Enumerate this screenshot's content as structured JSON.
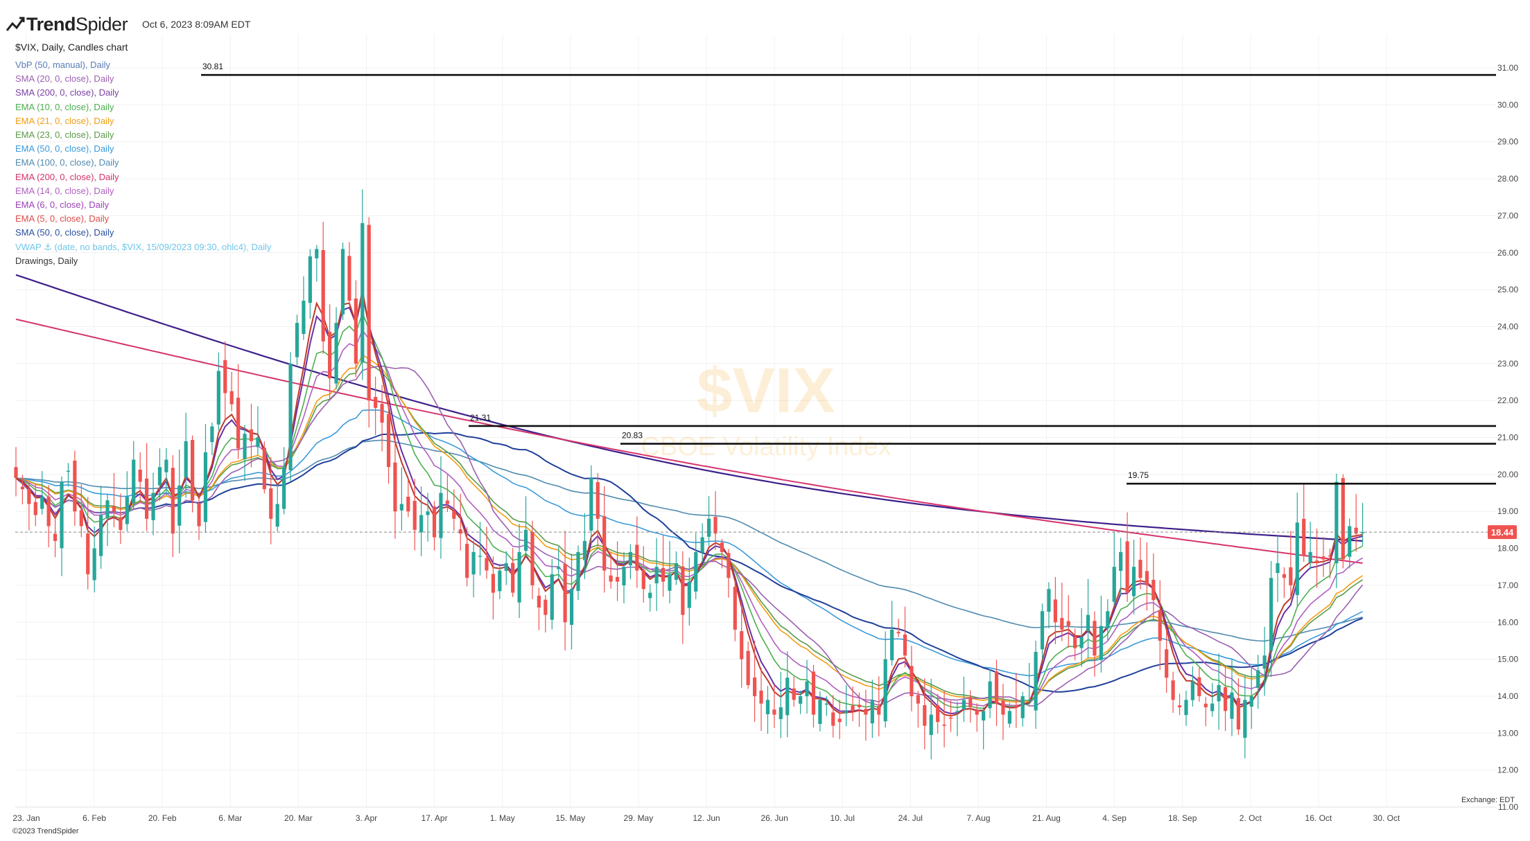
{
  "header": {
    "brand_a": "Trend",
    "brand_b": "Spider",
    "timestamp": "Oct 6, 2023 8:09AM EDT",
    "chart_name": "$VIX, Daily, Candles chart"
  },
  "legend": [
    {
      "label": "VbP (50, manual), Daily",
      "color": "#5b7db8"
    },
    {
      "label": "SMA (20, 0, close), Daily",
      "color": "#9c5fb0"
    },
    {
      "label": "SMA (200, 0, close), Daily",
      "color": "#7b3fa6"
    },
    {
      "label": "EMA (10, 0, close), Daily",
      "color": "#4caf50"
    },
    {
      "label": "EMA (21, 0, close), Daily",
      "color": "#f39c12"
    },
    {
      "label": "EMA (23, 0, close), Daily",
      "color": "#5a9a4a"
    },
    {
      "label": "EMA (50, 0, close), Daily",
      "color": "#3a9ad9"
    },
    {
      "label": "EMA (100, 0, close), Daily",
      "color": "#4f8ab0"
    },
    {
      "label": "EMA (200, 0, close), Daily",
      "color": "#d6336c"
    },
    {
      "label": "EMA (14, 0, close), Daily",
      "color": "#b05fc0"
    },
    {
      "label": "EMA (6, 0, close), Daily",
      "color": "#9b3fb5"
    },
    {
      "label": "EMA (5, 0, close), Daily",
      "color": "#e04a4a"
    },
    {
      "label": "SMA (50, 0, close), Daily",
      "color": "#2a4fa0"
    },
    {
      "label": "VWAP ⚓ (date, no bands, $VIX, 15/09/2023 09:30, ohlc4), Daily",
      "color": "#6ec6ea"
    },
    {
      "label": "Drawings, Daily",
      "color": "#333333"
    }
  ],
  "watermark": {
    "ticker": "$VIX",
    "name": "CBOE Volatility Index"
  },
  "footer": {
    "copyright": "©2023 TrendSpider",
    "exchange": "Exchange: EDT"
  },
  "colors": {
    "up": "#26a69a",
    "down": "#ef5350",
    "price_tag": "#ef5350"
  },
  "chart_data": {
    "type": "candlestick",
    "ticker": "$VIX",
    "interval": "Daily",
    "x_ticks": [
      "23. Jan",
      "6. Feb",
      "20. Feb",
      "6. Mar",
      "20. Mar",
      "3. Apr",
      "17. Apr",
      "1. May",
      "15. May",
      "29. May",
      "12. Jun",
      "26. Jun",
      "10. Jul",
      "24. Jul",
      "7. Aug",
      "21. Aug",
      "4. Sep",
      "18. Sep",
      "2. Oct",
      "16. Oct",
      "30. Oct"
    ],
    "y_ticks": [
      "11.00",
      "12.00",
      "13.00",
      "14.00",
      "15.00",
      "16.00",
      "17.00",
      "18.00",
      "19.00",
      "20.00",
      "21.00",
      "22.00",
      "23.00",
      "24.00",
      "25.00",
      "26.00",
      "27.00",
      "28.00",
      "29.00",
      "30.00",
      "31.00"
    ],
    "ylim": [
      11,
      31.9
    ],
    "last_price": "18.44",
    "horizontal_levels": [
      {
        "value": 30.81,
        "label": "30.81",
        "from": "7. Mar"
      },
      {
        "value": 21.31,
        "label": "21.31",
        "from": "18. Apr"
      },
      {
        "value": 20.83,
        "label": "20.83",
        "from": "15. May"
      },
      {
        "value": 19.75,
        "label": "19.75",
        "from": "21. Aug"
      }
    ],
    "closes": [
      19.9,
      19.6,
      19.2,
      18.9,
      19.4,
      18.6,
      18.2,
      19.8,
      20.1,
      19.0,
      18.6,
      17.3,
      18.0,
      18.9,
      19.3,
      19.0,
      18.5,
      19.4,
      20.4,
      19.8,
      18.8,
      19.5,
      20.2,
      20.4,
      18.4,
      19.7,
      20.9,
      19.3,
      18.6,
      20.6,
      21.3,
      22.8,
      22.2,
      21.9,
      20.7,
      21.1,
      20.9,
      21.0,
      19.6,
      18.8,
      19.2,
      20.2,
      23.0,
      24.1,
      24.7,
      25.9,
      26.1,
      23.6,
      22.6,
      24.1,
      26.1,
      24.7,
      23.0,
      26.8,
      22.0,
      21.8,
      21.4,
      20.2,
      19.0,
      19.2,
      19.0,
      18.5,
      18.9,
      19.0,
      18.3,
      19.5,
      19.2,
      18.8,
      18.4,
      17.2,
      17.9,
      17.8,
      17.4,
      16.8,
      17.4,
      17.6,
      16.8,
      17.9,
      18.5,
      17.0,
      16.4,
      16.2,
      17.3,
      17.5,
      16.0,
      16.9,
      17.9,
      18.2,
      19.9,
      18.8,
      17.4,
      17.1,
      17.1,
      17.5,
      17.9,
      17.4,
      16.9,
      16.8,
      17.5,
      17.1,
      17.3,
      17.6,
      16.2,
      17.1,
      17.9,
      18.3,
      18.8,
      18.4,
      17.9,
      17.2,
      15.8,
      15.0,
      14.3,
      14.0,
      13.8,
      13.9,
      13.5,
      13.7,
      14.5,
      13.9,
      14.0,
      14.4,
      13.5,
      13.9,
      13.8,
      13.2,
      13.3,
      13.6,
      13.6,
      13.7,
      13.5,
      13.9,
      13.5,
      15.0,
      15.8,
      15.7,
      15.1,
      14.0,
      13.8,
      13.2,
      13.5,
      13.3,
      13.2,
      13.4,
      13.6,
      13.9,
      13.7,
      13.5,
      13.6,
      14.4,
      13.8,
      13.5,
      13.6,
      13.7,
      14.0,
      13.9,
      15.2,
      16.3,
      16.9,
      16.0,
      15.8,
      15.9,
      15.3,
      15.6,
      16.2,
      15.1,
      15.9,
      16.3,
      17.5,
      17.9,
      16.8,
      17.5,
      17.2,
      17.0,
      16.6,
      15.5,
      14.5,
      13.9,
      13.7,
      13.9,
      14.4,
      14.0,
      13.7,
      13.8,
      14.3,
      13.6,
      14.1,
      13.1,
      13.9,
      14.0,
      14.7,
      15.1,
      17.2,
      17.6,
      17.2,
      17.0,
      18.7,
      17.8,
      17.9,
      17.6,
      17.7,
      17.8,
      19.8,
      17.7,
      18.6,
      18.4,
      18.44
    ]
  }
}
